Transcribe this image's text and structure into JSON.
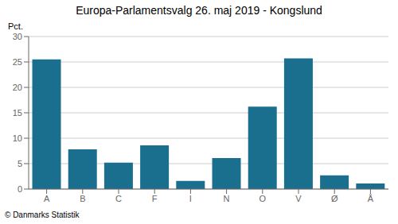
{
  "chart_data": {
    "type": "bar",
    "title": "Europa-Parlamentsvalg 26. maj 2019 - Kongslund",
    "ylabel": "Pct.",
    "annotations": [
      "© Danmarks Statistik"
    ],
    "categories": [
      "A",
      "B",
      "C",
      "F",
      "I",
      "N",
      "O",
      "V",
      "Ø",
      "Å"
    ],
    "values": [
      25.5,
      7.8,
      5.2,
      8.6,
      1.6,
      6.1,
      16.2,
      25.7,
      2.7,
      1.1
    ],
    "color": "#1a6e8e",
    "ylim": [
      0,
      30
    ],
    "yticks": [
      0,
      5,
      10,
      15,
      20,
      25,
      30
    ],
    "grid": true
  }
}
